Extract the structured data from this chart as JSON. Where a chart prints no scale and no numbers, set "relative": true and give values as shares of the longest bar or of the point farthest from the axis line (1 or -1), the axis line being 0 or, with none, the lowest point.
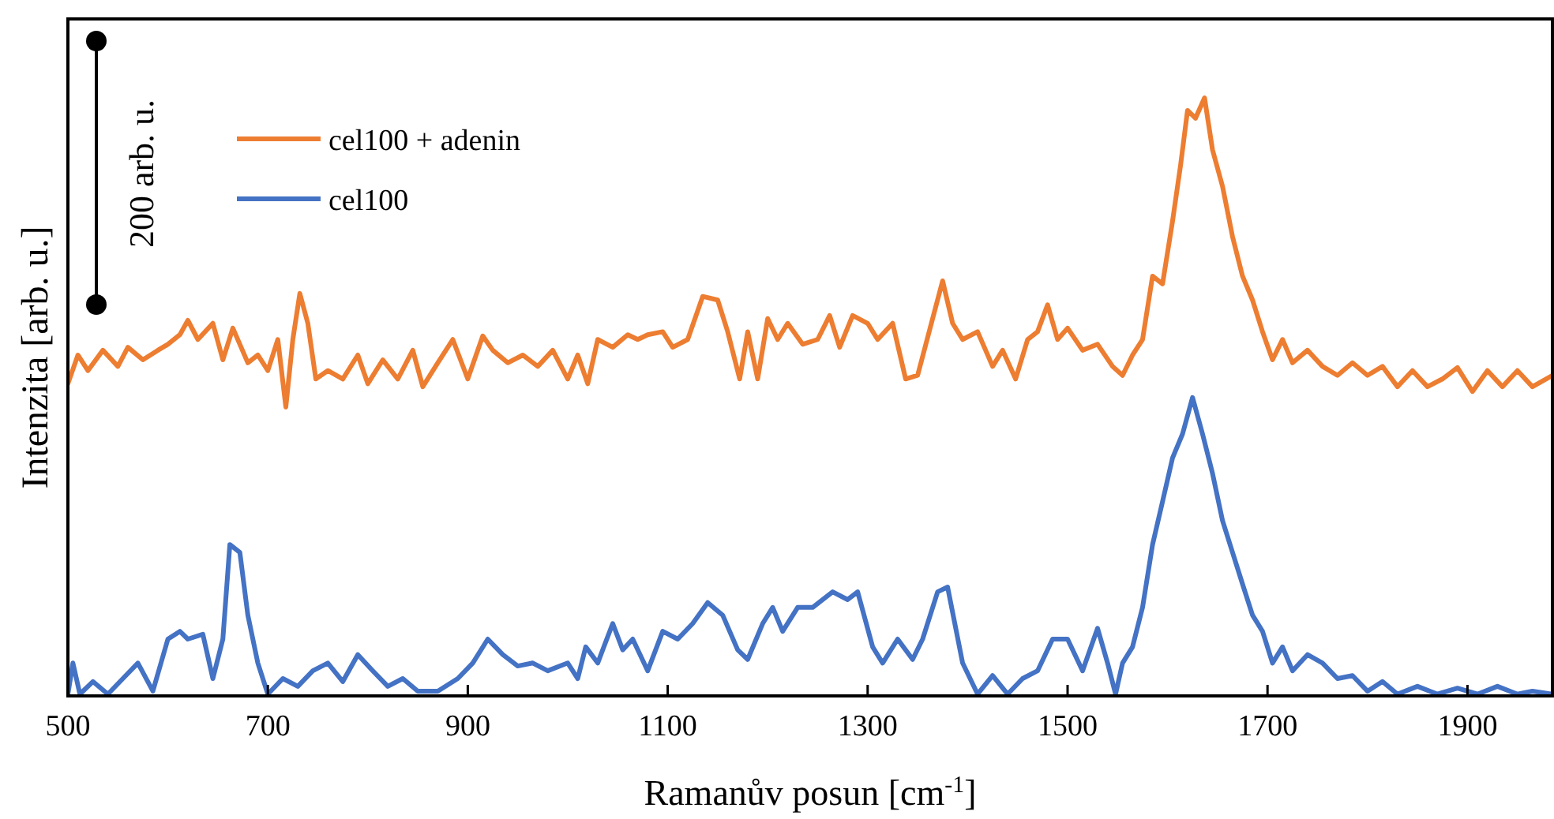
{
  "chart_data": {
    "type": "line",
    "relative": true,
    "xlabel": "Ramanův posun [cm$^{-1}$]",
    "ylabel": "Intenzita [arb. u.]",
    "annotations": [
      "200 arb. u."
    ],
    "xlim": [
      500,
      1985
    ],
    "xticks": [
      500,
      700,
      900,
      1100,
      1300,
      1500,
      1700,
      1900
    ],
    "legend": "top left",
    "grid": false,
    "marker": "none",
    "line_style": "solid",
    "x": [
      500,
      510,
      520,
      535,
      550,
      560,
      575,
      590,
      600,
      612,
      620,
      630,
      645,
      655,
      665,
      680,
      690,
      700,
      710,
      718,
      725,
      732,
      740,
      748,
      760,
      775,
      790,
      800,
      815,
      830,
      845,
      855,
      870,
      885,
      900,
      915,
      925,
      940,
      955,
      970,
      985,
      1000,
      1010,
      1020,
      1030,
      1045,
      1060,
      1070,
      1080,
      1095,
      1105,
      1120,
      1135,
      1150,
      1160,
      1172,
      1180,
      1190,
      1200,
      1210,
      1220,
      1235,
      1250,
      1262,
      1272,
      1285,
      1300,
      1310,
      1325,
      1338,
      1350,
      1365,
      1375,
      1385,
      1395,
      1410,
      1425,
      1435,
      1448,
      1460,
      1470,
      1480,
      1490,
      1500,
      1515,
      1530,
      1545,
      1555,
      1565,
      1575,
      1585,
      1595,
      1605,
      1613,
      1620,
      1628,
      1637,
      1645,
      1655,
      1665,
      1675,
      1685,
      1695,
      1705,
      1715,
      1725,
      1740,
      1755,
      1770,
      1785,
      1800,
      1815,
      1830,
      1845,
      1860,
      1875,
      1890,
      1905,
      1920,
      1935,
      1950,
      1965,
      1985
    ],
    "series": [
      {
        "name": "cel100 + adenin",
        "color": "#ed7d31",
        "values": [
          0.522,
          0.57,
          0.544,
          0.578,
          0.551,
          0.583,
          0.562,
          0.578,
          0.588,
          0.604,
          0.628,
          0.596,
          0.623,
          0.562,
          0.615,
          0.557,
          0.57,
          0.544,
          0.596,
          0.483,
          0.596,
          0.673,
          0.623,
          0.53,
          0.544,
          0.53,
          0.57,
          0.522,
          0.562,
          0.53,
          0.578,
          0.517,
          0.557,
          0.596,
          0.53,
          0.602,
          0.578,
          0.557,
          0.57,
          0.551,
          0.578,
          0.53,
          0.57,
          0.522,
          0.596,
          0.583,
          0.604,
          0.596,
          0.604,
          0.609,
          0.583,
          0.596,
          0.668,
          0.662,
          0.609,
          0.53,
          0.609,
          0.53,
          0.631,
          0.596,
          0.623,
          0.588,
          0.596,
          0.636,
          0.583,
          0.636,
          0.623,
          0.596,
          0.623,
          0.53,
          0.536,
          0.631,
          0.694,
          0.623,
          0.596,
          0.609,
          0.551,
          0.578,
          0.53,
          0.596,
          0.609,
          0.654,
          0.596,
          0.615,
          0.578,
          0.588,
          0.551,
          0.536,
          0.57,
          0.596,
          0.702,
          0.689,
          0.794,
          0.887,
          0.979,
          0.966,
          1,
          0.913,
          0.852,
          0.768,
          0.702,
          0.662,
          0.609,
          0.562,
          0.596,
          0.557,
          0.578,
          0.551,
          0.536,
          0.557,
          0.536,
          0.551,
          0.517,
          0.544,
          0.517,
          0.53,
          0.549,
          0.509,
          0.544,
          0.517,
          0.544,
          0.517,
          0.536
        ]
      },
      {
        "name": "cel100",
        "color": "#4472c4",
        "x": [
          500,
          505,
          512,
          525,
          540,
          555,
          570,
          585,
          600,
          612,
          620,
          635,
          645,
          655,
          662,
          672,
          680,
          690,
          700,
          715,
          730,
          745,
          760,
          775,
          790,
          805,
          820,
          835,
          850,
          870,
          890,
          905,
          920,
          935,
          950,
          965,
          980,
          1000,
          1010,
          1018,
          1030,
          1045,
          1055,
          1065,
          1080,
          1095,
          1110,
          1125,
          1140,
          1155,
          1170,
          1180,
          1195,
          1205,
          1215,
          1230,
          1245,
          1265,
          1280,
          1290,
          1305,
          1315,
          1330,
          1345,
          1355,
          1370,
          1380,
          1395,
          1410,
          1425,
          1440,
          1455,
          1470,
          1485,
          1500,
          1515,
          1530,
          1540,
          1548,
          1555,
          1565,
          1575,
          1585,
          1595,
          1605,
          1615,
          1625,
          1635,
          1645,
          1655,
          1665,
          1675,
          1685,
          1695,
          1705,
          1715,
          1725,
          1740,
          1755,
          1770,
          1785,
          1800,
          1815,
          1830,
          1850,
          1870,
          1890,
          1910,
          1930,
          1950,
          1965,
          1985
        ],
        "values": [
          0.003,
          0.055,
          0.003,
          0.024,
          0.003,
          0.029,
          0.055,
          0.008,
          0.095,
          0.108,
          0.095,
          0.103,
          0.029,
          0.095,
          0.253,
          0.24,
          0.135,
          0.055,
          0.003,
          0.029,
          0.016,
          0.042,
          0.055,
          0.024,
          0.069,
          0.042,
          0.016,
          0.029,
          0.008,
          0.008,
          0.029,
          0.055,
          0.095,
          0.069,
          0.05,
          0.055,
          0.042,
          0.055,
          0.029,
          0.082,
          0.055,
          0.121,
          0.077,
          0.095,
          0.042,
          0.108,
          0.095,
          0.121,
          0.156,
          0.135,
          0.077,
          0.061,
          0.121,
          0.148,
          0.108,
          0.148,
          0.148,
          0.174,
          0.161,
          0.174,
          0.082,
          0.055,
          0.095,
          0.061,
          0.095,
          0.174,
          0.182,
          0.055,
          0.003,
          0.034,
          0.003,
          0.029,
          0.042,
          0.095,
          0.095,
          0.042,
          0.113,
          0.055,
          0.003,
          0.055,
          0.082,
          0.148,
          0.253,
          0.325,
          0.398,
          0.438,
          0.499,
          0.438,
          0.372,
          0.293,
          0.24,
          0.187,
          0.135,
          0.108,
          0.055,
          0.082,
          0.042,
          0.069,
          0.055,
          0.029,
          0.034,
          0.008,
          0.024,
          0.003,
          0.016,
          0.003,
          0.013,
          0.003,
          0.016,
          0.003,
          0.008,
          0.003
        ]
      }
    ]
  }
}
